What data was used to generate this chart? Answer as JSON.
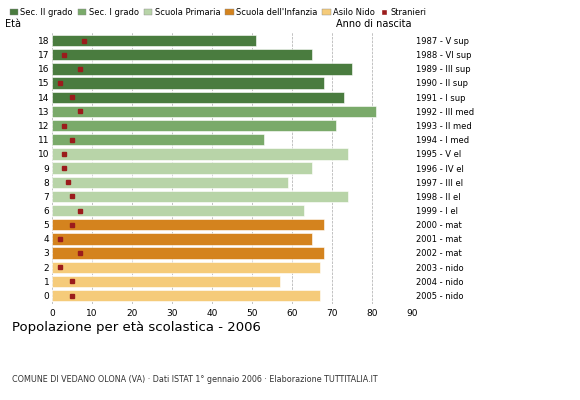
{
  "ages": [
    18,
    17,
    16,
    15,
    14,
    13,
    12,
    11,
    10,
    9,
    8,
    7,
    6,
    5,
    4,
    3,
    2,
    1,
    0
  ],
  "years": [
    "1987 - V sup",
    "1988 - VI sup",
    "1989 - III sup",
    "1990 - II sup",
    "1991 - I sup",
    "1992 - III med",
    "1993 - II med",
    "1994 - I med",
    "1995 - V el",
    "1996 - IV el",
    "1997 - III el",
    "1998 - II el",
    "1999 - I el",
    "2000 - mat",
    "2001 - mat",
    "2002 - mat",
    "2003 - nido",
    "2004 - nido",
    "2005 - nido"
  ],
  "values": [
    51,
    65,
    75,
    68,
    73,
    81,
    71,
    53,
    74,
    65,
    59,
    74,
    63,
    68,
    65,
    68,
    67,
    57,
    67
  ],
  "stranieri": [
    8,
    3,
    7,
    2,
    5,
    7,
    3,
    5,
    3,
    3,
    4,
    5,
    7,
    5,
    2,
    7,
    2,
    5,
    5
  ],
  "bar_colors": [
    "#4a7c3f",
    "#4a7c3f",
    "#4a7c3f",
    "#4a7c3f",
    "#4a7c3f",
    "#7aaa6a",
    "#7aaa6a",
    "#7aaa6a",
    "#b8d4a8",
    "#b8d4a8",
    "#b8d4a8",
    "#b8d4a8",
    "#b8d4a8",
    "#d4831e",
    "#d4831e",
    "#d4831e",
    "#f5cb7a",
    "#f5cb7a",
    "#f5cb7a"
  ],
  "legend_labels": [
    "Sec. II grado",
    "Sec. I grado",
    "Scuola Primaria",
    "Scuola dell'Infanzia",
    "Asilo Nido",
    "Stranieri"
  ],
  "legend_colors": [
    "#4a7c3f",
    "#7aaa6a",
    "#b8d4a8",
    "#d4831e",
    "#f5cb7a",
    "#9b1c1c"
  ],
  "title": "Popolazione per età scolastica - 2006",
  "subtitle": "COMUNE DI VEDANO OLONA (VA) · Dati ISTAT 1° gennaio 2006 · Elaborazione TUTTITALIA.IT",
  "xlabel_eta": "Età",
  "xlabel_anno": "Anno di nascita",
  "xlim": [
    0,
    90
  ],
  "background_color": "#ffffff",
  "stranieri_color": "#9b1c1c"
}
